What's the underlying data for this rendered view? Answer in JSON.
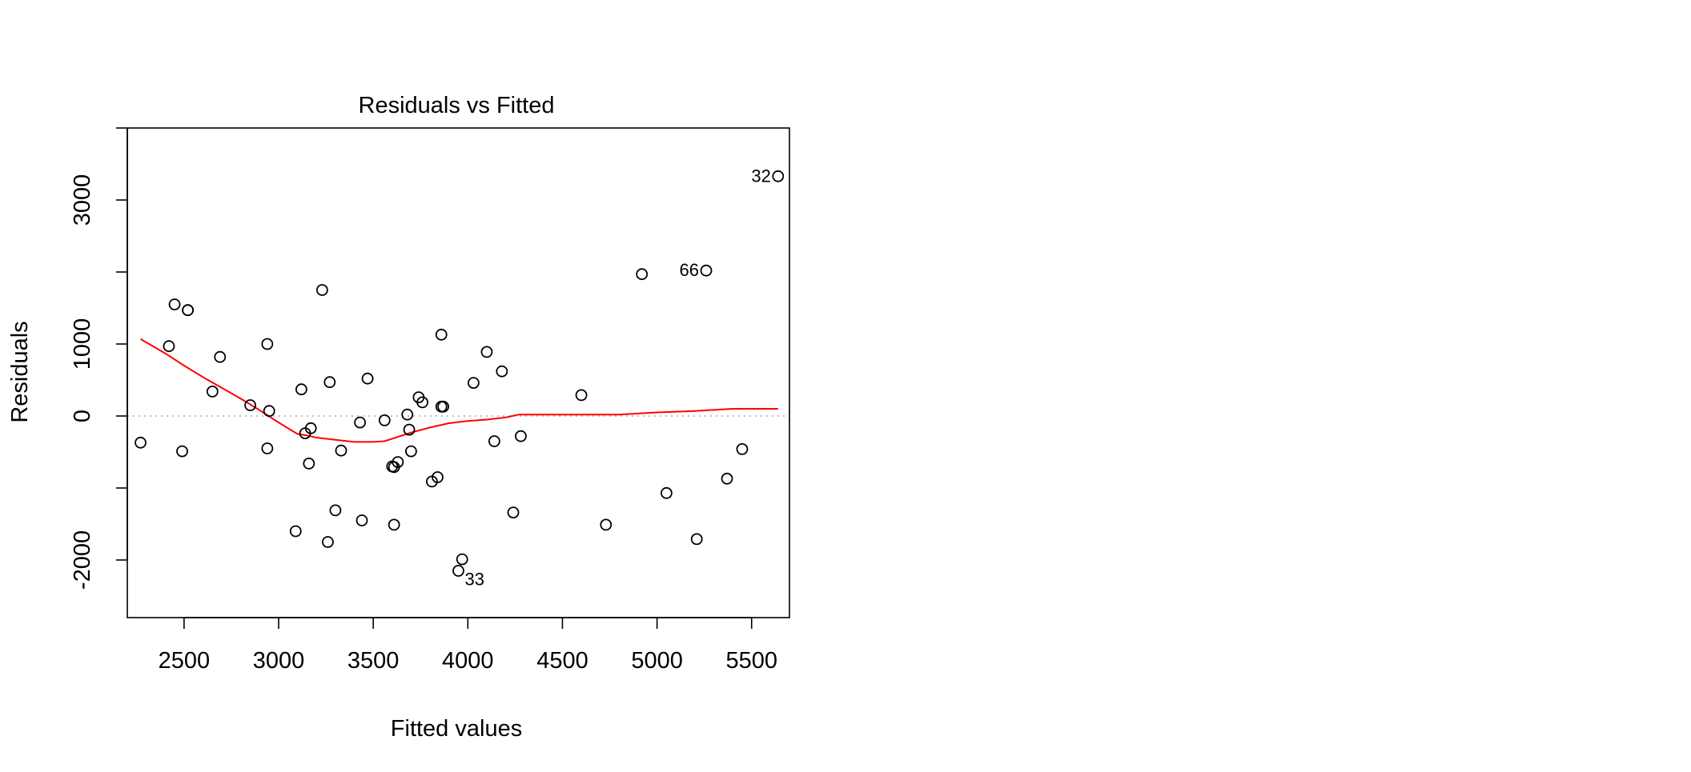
{
  "chart_data": {
    "type": "scatter",
    "title": "Residuals vs Fitted",
    "xlabel": "Fitted values",
    "ylabel": "Residuals",
    "xlim": [
      2200,
      5700
    ],
    "ylim": [
      -2800,
      4000
    ],
    "x_ticks": [
      2500,
      3000,
      3500,
      4000,
      4500,
      5000,
      5500
    ],
    "x_tick_labels": [
      "2500",
      "3000",
      "3500",
      "4000",
      "4500",
      "5000",
      "5500"
    ],
    "y_ticks": [
      -2000,
      0,
      1000,
      3000
    ],
    "y_tick_labels": [
      "-2000",
      "0",
      "1000",
      "3000"
    ],
    "y_minor_ticks": [
      -2000,
      -1000,
      0,
      1000,
      2000,
      3000,
      4000
    ],
    "grid": false,
    "reference_line": {
      "y": 0,
      "style": "dotted",
      "color": "#aaaaaa"
    },
    "points": [
      {
        "x": 2270,
        "y": -370
      },
      {
        "x": 2420,
        "y": 970
      },
      {
        "x": 2450,
        "y": 1550
      },
      {
        "x": 2490,
        "y": -490
      },
      {
        "x": 2520,
        "y": 1470
      },
      {
        "x": 2520,
        "y": 1470
      },
      {
        "x": 2650,
        "y": 340
      },
      {
        "x": 2690,
        "y": 820
      },
      {
        "x": 2850,
        "y": 150
      },
      {
        "x": 2940,
        "y": 1000
      },
      {
        "x": 2940,
        "y": -450
      },
      {
        "x": 2950,
        "y": 70
      },
      {
        "x": 3090,
        "y": -1600
      },
      {
        "x": 3120,
        "y": 370
      },
      {
        "x": 3140,
        "y": -240
      },
      {
        "x": 3160,
        "y": -660
      },
      {
        "x": 3170,
        "y": -170
      },
      {
        "x": 3230,
        "y": 1750
      },
      {
        "x": 3260,
        "y": -1750
      },
      {
        "x": 3270,
        "y": 470
      },
      {
        "x": 3300,
        "y": -1310
      },
      {
        "x": 3330,
        "y": -480
      },
      {
        "x": 3430,
        "y": -90
      },
      {
        "x": 3440,
        "y": -1450
      },
      {
        "x": 3470,
        "y": 520
      },
      {
        "x": 3560,
        "y": -60
      },
      {
        "x": 3600,
        "y": -700
      },
      {
        "x": 3610,
        "y": -710
      },
      {
        "x": 3610,
        "y": -1510
      },
      {
        "x": 3630,
        "y": -640
      },
      {
        "x": 3680,
        "y": 20
      },
      {
        "x": 3690,
        "y": -190
      },
      {
        "x": 3700,
        "y": -490
      },
      {
        "x": 3740,
        "y": 260
      },
      {
        "x": 3760,
        "y": 190
      },
      {
        "x": 3810,
        "y": -910
      },
      {
        "x": 3840,
        "y": -850
      },
      {
        "x": 3860,
        "y": 1130
      },
      {
        "x": 3860,
        "y": 130
      },
      {
        "x": 3870,
        "y": 130
      },
      {
        "x": 3950,
        "y": -2150,
        "label": "33"
      },
      {
        "x": 3970,
        "y": -1990
      },
      {
        "x": 4030,
        "y": 460
      },
      {
        "x": 4100,
        "y": 890
      },
      {
        "x": 4140,
        "y": -350
      },
      {
        "x": 4180,
        "y": 620
      },
      {
        "x": 4240,
        "y": -1340
      },
      {
        "x": 4280,
        "y": -280
      },
      {
        "x": 4600,
        "y": 290
      },
      {
        "x": 4730,
        "y": -1510
      },
      {
        "x": 4920,
        "y": 1970
      },
      {
        "x": 5050,
        "y": -1070
      },
      {
        "x": 5210,
        "y": -1710
      },
      {
        "x": 5260,
        "y": 2020,
        "label": "66"
      },
      {
        "x": 5370,
        "y": -870
      },
      {
        "x": 5450,
        "y": -460
      },
      {
        "x": 5640,
        "y": 3330,
        "label": "32"
      }
    ],
    "smoother": {
      "color": "#ff0000",
      "x": [
        2270,
        2400,
        2500,
        2600,
        2700,
        2800,
        2900,
        3000,
        3050,
        3100,
        3150,
        3200,
        3300,
        3400,
        3500,
        3560,
        3700,
        3800,
        3900,
        4000,
        4100,
        4200,
        4270,
        4500,
        4800,
        5000,
        5200,
        5400,
        5640
      ],
      "y": [
        1070,
        870,
        700,
        540,
        390,
        240,
        80,
        -90,
        -170,
        -250,
        -270,
        -300,
        -330,
        -360,
        -360,
        -350,
        -230,
        -160,
        -100,
        -70,
        -50,
        -20,
        20,
        20,
        20,
        50,
        70,
        100,
        100
      ]
    }
  }
}
